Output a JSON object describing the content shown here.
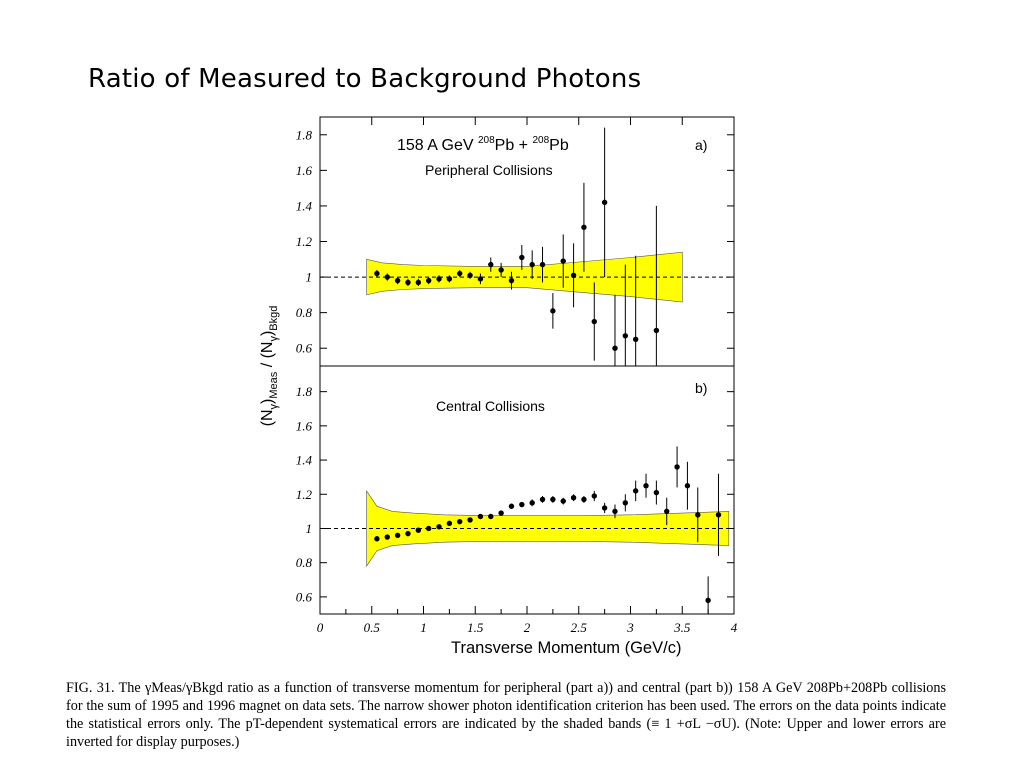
{
  "slide": {
    "title": "Ratio of Measured to Background Photons"
  },
  "caption": {
    "text": "FIG. 31. The γMeas/γBkgd ratio as a function of transverse momentum for peripheral (part a)) and central (part b)) 158 A GeV 208Pb+208Pb collisions for the sum of 1995 and 1996 magnet on data sets. The narrow shower photon identification criterion has been used. The errors on the data points indicate the statistical errors only. The pT-dependent systematical errors are indicated by the shaded bands (≡ 1 +σL −σU). (Note: Upper and lower errors are inverted for display purposes.)"
  },
  "chart_data": [
    {
      "type": "scatter",
      "panel_label": "a)",
      "system_label": "158 A GeV 208Pb + 208Pb",
      "title": "Peripheral Collisions",
      "xlabel": "Transverse Momentum (GeV/c)",
      "ylabel": "(Nγ)Meas / (Nγ)Bkgd",
      "xlim": [
        0,
        4
      ],
      "ylim": [
        0.5,
        1.9
      ],
      "y_ticks": [
        0.6,
        0.8,
        1,
        1.2,
        1.4,
        1.6,
        1.8
      ],
      "y_tick_labels": [
        "0.6",
        "0.8",
        "1",
        "1.2",
        "1.4",
        "1.6",
        "1.8"
      ],
      "reference_line": 1,
      "band_color": "#ffff00",
      "band": {
        "x": [
          0.45,
          0.6,
          0.8,
          1.0,
          1.5,
          2.0,
          2.5,
          3.0,
          3.5
        ],
        "upper": [
          1.1,
          1.08,
          1.07,
          1.065,
          1.06,
          1.06,
          1.085,
          1.11,
          1.14
        ],
        "lower": [
          0.9,
          0.92,
          0.93,
          0.935,
          0.94,
          0.94,
          0.915,
          0.89,
          0.86
        ]
      },
      "series": [
        {
          "x": [
            0.55,
            0.65,
            0.75,
            0.85,
            0.95,
            1.05,
            1.15,
            1.25,
            1.35,
            1.45,
            1.55,
            1.65,
            1.75,
            1.85,
            1.95,
            2.05,
            2.15,
            2.25,
            2.35,
            2.45,
            2.55,
            2.65,
            2.75,
            2.85,
            2.95,
            3.05,
            3.25
          ],
          "y": [
            1.02,
            1.0,
            0.98,
            0.97,
            0.97,
            0.98,
            0.99,
            0.99,
            1.02,
            1.01,
            0.99,
            1.07,
            1.04,
            0.98,
            1.11,
            1.07,
            1.07,
            0.81,
            1.09,
            1.01,
            1.28,
            0.75,
            1.42,
            0.6,
            0.67,
            0.65,
            0.7
          ],
          "err": [
            0.02,
            0.02,
            0.02,
            0.02,
            0.02,
            0.02,
            0.02,
            0.02,
            0.02,
            0.02,
            0.03,
            0.04,
            0.04,
            0.05,
            0.07,
            0.08,
            0.1,
            0.1,
            0.15,
            0.18,
            0.25,
            0.22,
            0.42,
            0.3,
            0.4,
            0.47,
            0.7
          ]
        }
      ]
    },
    {
      "type": "scatter",
      "panel_label": "b)",
      "title": "Central Collisions",
      "xlabel": "Transverse Momentum (GeV/c)",
      "ylabel": "(Nγ)Meas / (Nγ)Bkgd",
      "xlim": [
        0,
        4
      ],
      "ylim": [
        0.5,
        1.95
      ],
      "y_ticks": [
        0.6,
        0.8,
        1,
        1.2,
        1.4,
        1.6,
        1.8
      ],
      "y_tick_labels": [
        "0.6",
        "0.8",
        "1",
        "1.2",
        "1.4",
        "1.6",
        "1.8"
      ],
      "x_ticks": [
        0,
        0.5,
        1,
        1.5,
        2,
        2.5,
        3,
        3.5,
        4
      ],
      "x_tick_labels": [
        "0",
        "0.5",
        "1",
        "1.5",
        "2",
        "2.5",
        "3",
        "3.5",
        "4"
      ],
      "reference_line": 1,
      "band_color": "#ffff00",
      "band": {
        "x": [
          0.45,
          0.55,
          0.7,
          0.9,
          1.2,
          1.6,
          2.0,
          2.5,
          3.0,
          3.5,
          3.95
        ],
        "upper": [
          1.22,
          1.13,
          1.1,
          1.09,
          1.08,
          1.075,
          1.075,
          1.075,
          1.08,
          1.09,
          1.1
        ],
        "lower": [
          0.78,
          0.87,
          0.9,
          0.91,
          0.92,
          0.925,
          0.925,
          0.925,
          0.92,
          0.91,
          0.9
        ]
      },
      "series": [
        {
          "x": [
            0.55,
            0.65,
            0.75,
            0.85,
            0.95,
            1.05,
            1.15,
            1.25,
            1.35,
            1.45,
            1.55,
            1.65,
            1.75,
            1.85,
            1.95,
            2.05,
            2.15,
            2.25,
            2.35,
            2.45,
            2.55,
            2.65,
            2.75,
            2.85,
            2.95,
            3.05,
            3.15,
            3.25,
            3.35,
            3.45,
            3.55,
            3.65,
            3.75,
            3.85
          ],
          "y": [
            0.94,
            0.95,
            0.96,
            0.97,
            0.99,
            1.0,
            1.01,
            1.03,
            1.04,
            1.05,
            1.07,
            1.07,
            1.09,
            1.13,
            1.14,
            1.15,
            1.17,
            1.17,
            1.16,
            1.18,
            1.17,
            1.19,
            1.12,
            1.1,
            1.15,
            1.22,
            1.25,
            1.21,
            1.1,
            1.36,
            1.25,
            1.08,
            0.58,
            1.08
          ],
          "err": [
            0.01,
            0.01,
            0.01,
            0.01,
            0.01,
            0.01,
            0.01,
            0.01,
            0.01,
            0.01,
            0.01,
            0.01,
            0.01,
            0.01,
            0.01,
            0.02,
            0.02,
            0.02,
            0.02,
            0.02,
            0.02,
            0.03,
            0.03,
            0.04,
            0.05,
            0.06,
            0.07,
            0.07,
            0.08,
            0.12,
            0.14,
            0.16,
            0.14,
            0.24
          ]
        }
      ]
    }
  ]
}
